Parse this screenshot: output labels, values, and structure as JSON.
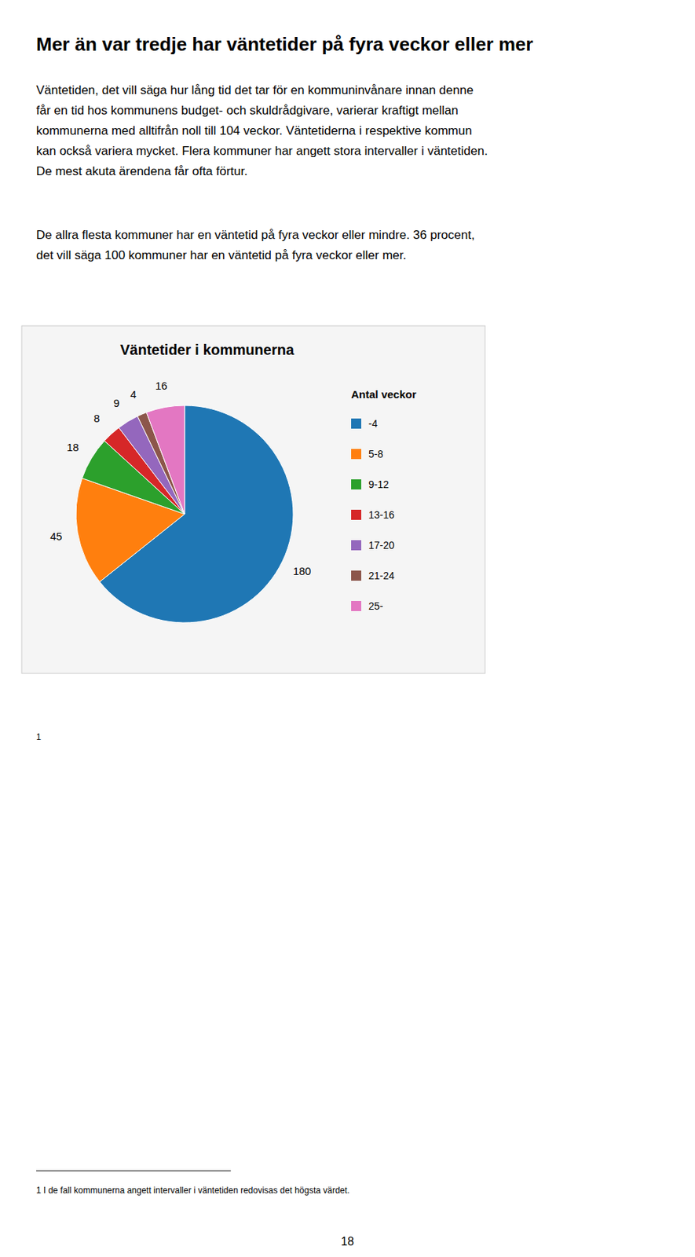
{
  "chart_data": {
    "type": "pie",
    "title": "Väntetider i kommunerna",
    "legend_title": "Antal veckor",
    "categories": [
      "-4",
      "5-8",
      "9-12",
      "13-16",
      "17-20",
      "21-24",
      "25-"
    ],
    "values": [
      180,
      45,
      18,
      8,
      9,
      4,
      16
    ],
    "data_labels": true,
    "legend": "right"
  },
  "page": {
    "heading": "Mer än var tredje har väntetider på fyra veckor eller mer",
    "paragraphs": [
      [
        "Väntetiden, det vill säga hur lång tid det tar för en kommuninvånare innan denne",
        "får en tid hos kommunens budget- och skuldrådgivare, varierar kraftigt mellan",
        "kommunerna med alltifrån noll till 104 veckor. Väntetiderna i respektive kommun",
        "kan också variera mycket. Flera kommuner har angett stora intervaller i väntetiden.",
        "De mest akuta ärendena får ofta förtur."
      ],
      [
        "De allra flesta kommuner har en väntetid på fyra veckor eller mindre. 36 procent,",
        "det vill säga 100 kommuner har en väntetid på fyra veckor eller mer."
      ]
    ],
    "footnote_marker": "1",
    "footnote_superscript": "1",
    "footnote": " I de fall kommunerna angett intervaller i väntetiden redovisas det högsta värdet.",
    "page_number": "18"
  }
}
